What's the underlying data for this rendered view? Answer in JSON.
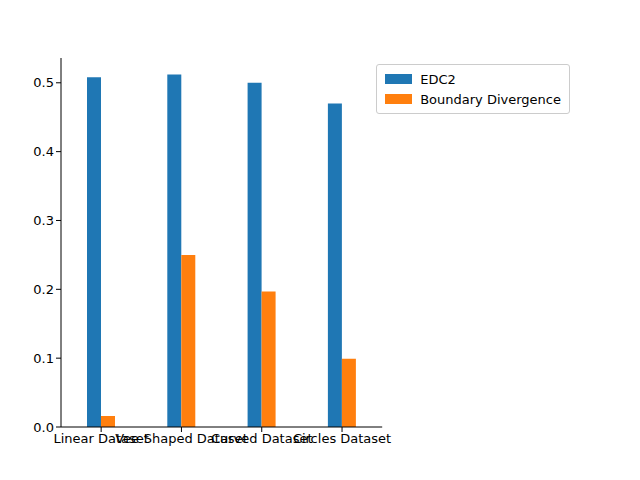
{
  "chart_data": {
    "type": "bar",
    "categories": [
      "Linear Dataset",
      "Vee-Shaped Dataset",
      "Curved Dataset",
      "Circles Dataset"
    ],
    "series": [
      {
        "name": "EDC2",
        "color": "#1f77b4",
        "values": [
          0.508,
          0.512,
          0.5,
          0.47
        ]
      },
      {
        "name": "Boundary Divergence",
        "color": "#ff7f0e",
        "values": [
          0.016,
          0.25,
          0.197,
          0.099
        ]
      }
    ],
    "ylim": [
      0,
      0.536
    ],
    "yticks": [
      {
        "value": 0,
        "label": "0.0"
      },
      {
        "value": 0.1,
        "label": "0.1"
      },
      {
        "value": 0.2,
        "label": "0.2"
      },
      {
        "value": 0.3,
        "label": "0.3"
      },
      {
        "value": 0.4,
        "label": "0.4"
      },
      {
        "value": 0.5,
        "label": "0.5"
      }
    ],
    "legend": "upper right",
    "grid": false
  }
}
